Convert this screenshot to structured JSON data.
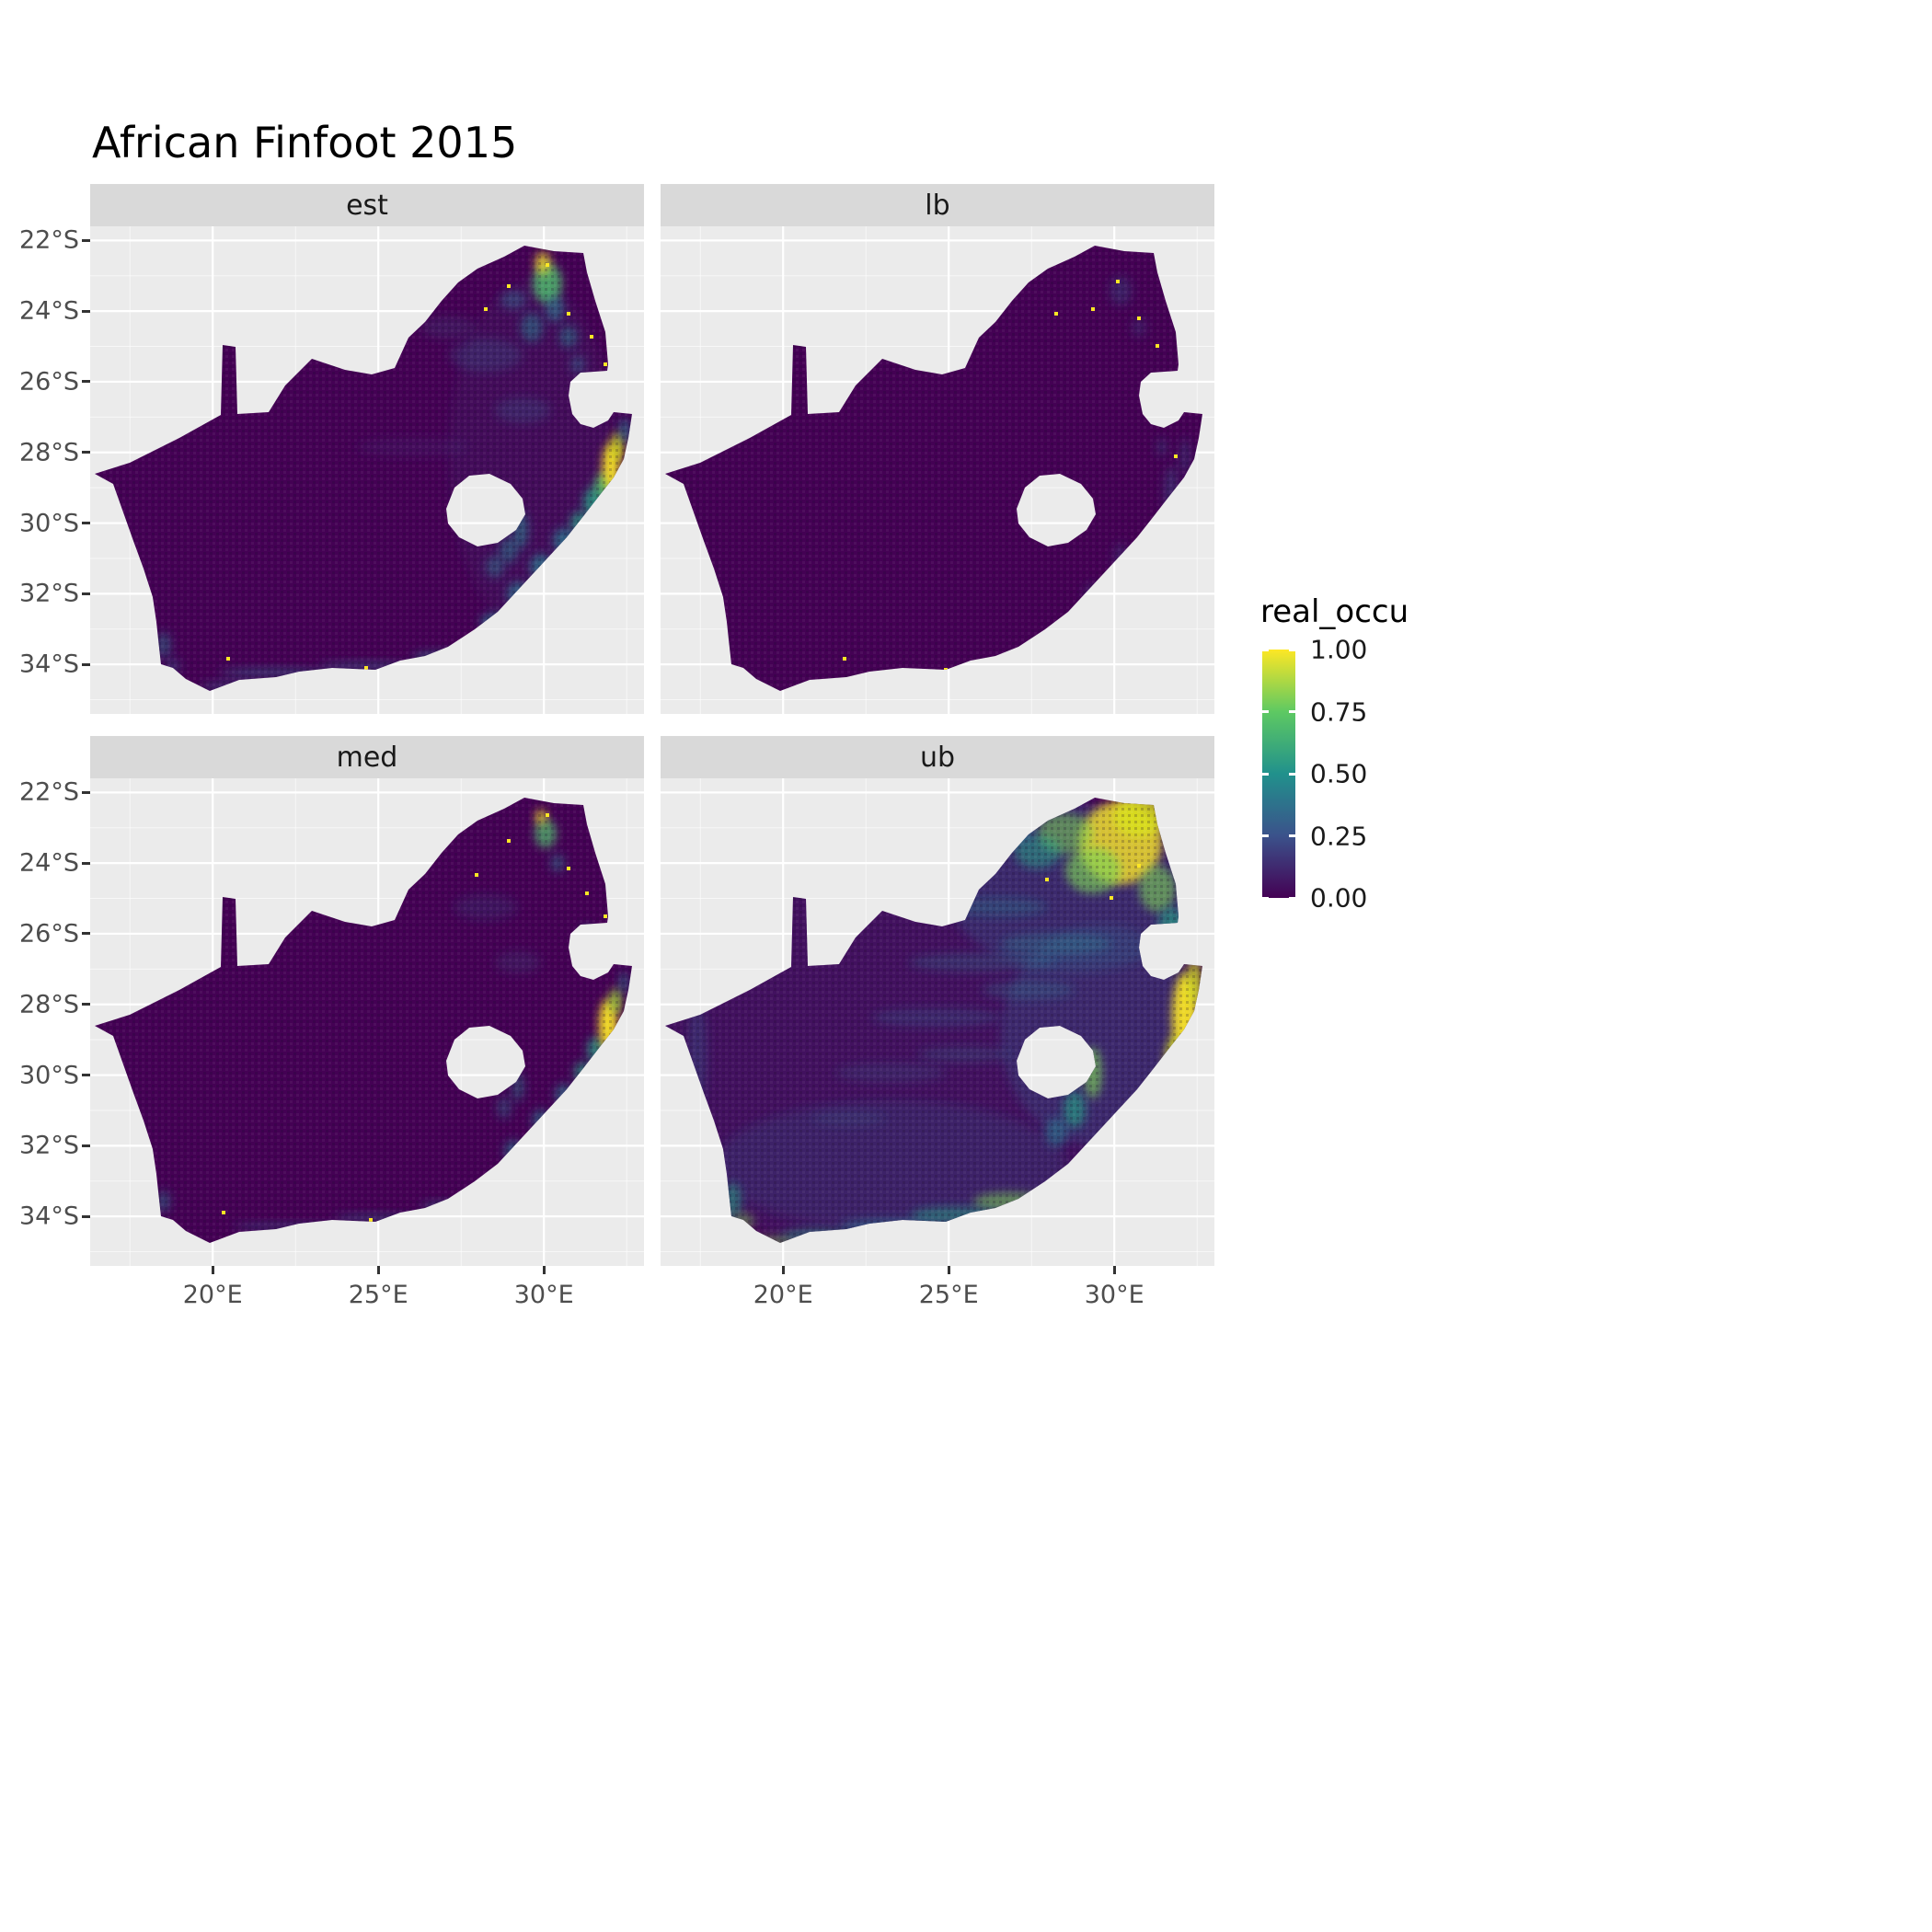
{
  "title": "African Finfoot 2015",
  "legend": {
    "title": "real_occu",
    "breaks": [
      "1.00",
      "0.75",
      "0.50",
      "0.25",
      "0.00"
    ],
    "palette": {
      "p0": "#440154",
      "p25": "#3b528b",
      "p50": "#21918c",
      "p75": "#5ec962",
      "p100": "#fde725"
    }
  },
  "chart_data": {
    "type": "heatmap",
    "subtype": "faceted raster occupancy map",
    "title": "African Finfoot 2015",
    "region": "South Africa",
    "x_axis": {
      "tick_labels": [
        "20°E",
        "25°E",
        "30°E"
      ],
      "tick_lons": [
        20,
        25,
        30
      ]
    },
    "y_axis": {
      "tick_labels": [
        "22°S",
        "24°S",
        "26°S",
        "28°S",
        "30°S",
        "32°S",
        "34°S"
      ],
      "tick_lats": [
        -22,
        -24,
        -26,
        -28,
        -30,
        -32,
        -34
      ]
    },
    "value_scale": {
      "name": "real_occu",
      "min": 0.0,
      "max": 1.0,
      "breaks": [
        1.0,
        0.75,
        0.5,
        0.25,
        0.0
      ],
      "palette": "viridis"
    },
    "facets": [
      {
        "label": "est",
        "description": "Estimated occupancy: near zero (dark purple) over most of the country; moderate to high along the eastern (KwaZulu-Natal) coastal belt with a bright peak near the east coast, elevated values in the north-east (Limpopo/Kruger), thin low-moderate band along the south coast; scattered occupied cells.",
        "blobs": [
          [
            480,
            250,
            90,
            190,
            "#31688e",
            0.1
          ],
          [
            440,
            430,
            16,
            10,
            "#2a788e",
            0.7
          ],
          [
            465,
            400,
            12,
            14,
            "#2a788e",
            0.7
          ],
          [
            490,
            370,
            12,
            14,
            "#2a788e",
            0.75
          ],
          [
            515,
            342,
            12,
            14,
            "#2a788e",
            0.75
          ],
          [
            532,
            322,
            10,
            12,
            "#22a884",
            0.7
          ],
          [
            548,
            300,
            12,
            16,
            "#22a884",
            0.75
          ],
          [
            558,
            282,
            10,
            14,
            "#4ec36b",
            0.8
          ],
          [
            566,
            262,
            9,
            26,
            "#fde725",
            0.95
          ],
          [
            573,
            240,
            7,
            16,
            "#d8e219",
            0.85
          ],
          [
            581,
            222,
            6,
            14,
            "#2a788e",
            0.7
          ],
          [
            497,
            62,
            16,
            22,
            "#4ec36b",
            0.8
          ],
          [
            492,
            40,
            8,
            12,
            "#fde725",
            0.8
          ],
          [
            505,
            90,
            10,
            14,
            "#2a788e",
            0.65
          ],
          [
            480,
            110,
            12,
            16,
            "#26828e",
            0.5
          ],
          [
            520,
            120,
            10,
            12,
            "#26828e",
            0.5
          ],
          [
            460,
            80,
            14,
            10,
            "#31688e",
            0.5
          ],
          [
            530,
            150,
            8,
            10,
            "#31688e",
            0.5
          ],
          [
            545,
            180,
            8,
            12,
            "#26828e",
            0.55
          ],
          [
            430,
            140,
            40,
            18,
            "#31688e",
            0.25
          ],
          [
            390,
            110,
            30,
            12,
            "#31688e",
            0.2
          ],
          [
            470,
            200,
            30,
            14,
            "#31688e",
            0.25
          ],
          [
            350,
            240,
            60,
            10,
            "#3b528b",
            0.15
          ],
          [
            468,
            330,
            8,
            20,
            "#26828e",
            0.6
          ],
          [
            455,
            352,
            10,
            14,
            "#26828e",
            0.5
          ],
          [
            440,
            370,
            10,
            12,
            "#2a788e",
            0.5
          ],
          [
            200,
            485,
            60,
            5,
            "#31688e",
            0.5
          ],
          [
            300,
            478,
            50,
            5,
            "#31688e",
            0.45
          ],
          [
            380,
            468,
            30,
            6,
            "#2a788e",
            0.5
          ],
          [
            150,
            500,
            30,
            5,
            "#31688e",
            0.4
          ],
          [
            80,
            455,
            8,
            14,
            "#2a788e",
            0.5
          ],
          [
            90,
            478,
            8,
            8,
            "#31688e",
            0.4
          ]
        ],
        "specks": [
          [
            150,
            470
          ],
          [
            300,
            480
          ],
          [
            497,
            42
          ],
          [
            545,
            120
          ],
          [
            520,
            95
          ],
          [
            560,
            150
          ],
          [
            430,
            90
          ],
          [
            455,
            65
          ],
          [
            350,
            100
          ]
        ]
      },
      {
        "label": "lb",
        "description": "Lower bound: occupancy near zero everywhere (uniform dark purple) with only a few isolated occupied cells in the north-east and along the coasts.",
        "blobs": [
          [
            555,
            290,
            8,
            30,
            "#31688e",
            0.35
          ],
          [
            570,
            250,
            6,
            20,
            "#31688e",
            0.3
          ],
          [
            500,
            360,
            8,
            16,
            "#3b528b",
            0.3
          ],
          [
            470,
            400,
            10,
            12,
            "#3b528b",
            0.3
          ],
          [
            500,
            70,
            12,
            16,
            "#31688e",
            0.3
          ],
          [
            520,
            110,
            8,
            10,
            "#3b528b",
            0.3
          ],
          [
            545,
            240,
            6,
            10,
            "#31688e",
            0.3
          ]
        ],
        "specks": [
          [
            497,
            60
          ],
          [
            520,
            100
          ],
          [
            540,
            130
          ],
          [
            470,
            90
          ],
          [
            560,
            250
          ],
          [
            200,
            470
          ],
          [
            310,
            482
          ],
          [
            552,
            200
          ],
          [
            430,
            95
          ]
        ]
      },
      {
        "label": "med",
        "description": "Median occupancy: similar to the estimate; mostly dark purple with a strong bright hotspot on the KwaZulu-Natal coast, teal coastal belt, moderate values in the north-east and a faint southern coastal band.",
        "blobs": [
          [
            460,
            405,
            10,
            12,
            "#2a788e",
            0.6
          ],
          [
            490,
            372,
            10,
            12,
            "#2a788e",
            0.6
          ],
          [
            515,
            344,
            10,
            12,
            "#2a788e",
            0.65
          ],
          [
            535,
            320,
            9,
            12,
            "#22a884",
            0.65
          ],
          [
            550,
            295,
            10,
            14,
            "#22a884",
            0.7
          ],
          [
            563,
            268,
            10,
            28,
            "#fde725",
            0.95
          ],
          [
            571,
            242,
            7,
            14,
            "#a0da39",
            0.8
          ],
          [
            580,
            222,
            5,
            12,
            "#2a788e",
            0.6
          ],
          [
            495,
            60,
            12,
            16,
            "#4ec36b",
            0.7
          ],
          [
            490,
            42,
            6,
            8,
            "#fde725",
            0.8
          ],
          [
            508,
            92,
            8,
            10,
            "#2a788e",
            0.5
          ],
          [
            540,
            170,
            7,
            10,
            "#26828e",
            0.45
          ],
          [
            430,
            140,
            35,
            14,
            "#31688e",
            0.18
          ],
          [
            465,
            200,
            25,
            12,
            "#31688e",
            0.2
          ],
          [
            465,
            335,
            7,
            16,
            "#26828e",
            0.45
          ],
          [
            450,
            358,
            8,
            12,
            "#2a788e",
            0.4
          ],
          [
            210,
            487,
            55,
            4,
            "#31688e",
            0.4
          ],
          [
            310,
            478,
            45,
            5,
            "#31688e",
            0.4
          ],
          [
            385,
            465,
            25,
            5,
            "#2a788e",
            0.45
          ],
          [
            80,
            460,
            7,
            12,
            "#2a788e",
            0.5
          ]
        ],
        "specks": [
          [
            145,
            472
          ],
          [
            305,
            480
          ],
          [
            497,
            40
          ],
          [
            520,
            98
          ],
          [
            455,
            68
          ],
          [
            560,
            150
          ],
          [
            420,
            105
          ],
          [
            540,
            125
          ]
        ]
      },
      {
        "label": "ub",
        "description": "Upper bound: widespread moderate occupancy; large yellow-green region across the north-east, bright yellow band along the entire east coast, green band along the south coast and Drakensberg rim, teal veins through the interior.",
        "blobs": [
          [
            300,
            265,
            320,
            280,
            "#3b528b",
            0.2
          ],
          [
            450,
            120,
            140,
            90,
            "#31688e",
            0.3
          ],
          [
            480,
            280,
            110,
            120,
            "#31688e",
            0.28
          ],
          [
            250,
            420,
            190,
            70,
            "#31688e",
            0.18
          ],
          [
            500,
            70,
            45,
            45,
            "#fde725",
            0.8
          ],
          [
            520,
            42,
            28,
            22,
            "#d8e219",
            0.8
          ],
          [
            470,
            100,
            30,
            25,
            "#7ad151",
            0.65
          ],
          [
            440,
            60,
            30,
            22,
            "#7ad151",
            0.55
          ],
          [
            410,
            80,
            25,
            18,
            "#22a884",
            0.5
          ],
          [
            380,
            60,
            25,
            14,
            "#2a788e",
            0.5
          ],
          [
            540,
            120,
            20,
            25,
            "#7ad151",
            0.6
          ],
          [
            555,
            160,
            14,
            20,
            "#22a884",
            0.6
          ],
          [
            570,
            260,
            14,
            48,
            "#fde725",
            0.92
          ],
          [
            560,
            310,
            12,
            30,
            "#d8e219",
            0.8
          ],
          [
            545,
            345,
            12,
            24,
            "#7ad151",
            0.7
          ],
          [
            520,
            380,
            14,
            24,
            "#22a884",
            0.7
          ],
          [
            490,
            410,
            14,
            20,
            "#7ad151",
            0.6
          ],
          [
            460,
            435,
            16,
            14,
            "#22a884",
            0.6
          ],
          [
            580,
            222,
            8,
            24,
            "#d8e219",
            0.8
          ],
          [
            470,
            320,
            10,
            28,
            "#7ad151",
            0.65
          ],
          [
            450,
            360,
            12,
            20,
            "#22a884",
            0.6
          ],
          [
            430,
            385,
            12,
            16,
            "#2a788e",
            0.6
          ],
          [
            380,
            460,
            40,
            10,
            "#7ad151",
            0.55
          ],
          [
            320,
            475,
            48,
            9,
            "#22a884",
            0.5
          ],
          [
            250,
            487,
            55,
            8,
            "#2a788e",
            0.55
          ],
          [
            170,
            497,
            38,
            8,
            "#22a884",
            0.45
          ],
          [
            120,
            505,
            24,
            8,
            "#7ad151",
            0.45
          ],
          [
            78,
            460,
            10,
            20,
            "#22a884",
            0.55
          ],
          [
            90,
            482,
            12,
            10,
            "#7ad151",
            0.45
          ],
          [
            40,
            300,
            10,
            60,
            "#31688e",
            0.3
          ],
          [
            350,
            200,
            80,
            10,
            "#2a788e",
            0.3
          ],
          [
            300,
            260,
            70,
            10,
            "#31688e",
            0.28
          ],
          [
            400,
            230,
            50,
            10,
            "#2a788e",
            0.3
          ],
          [
            250,
            320,
            60,
            10,
            "#31688e",
            0.22
          ],
          [
            330,
            300,
            50,
            8,
            "#2a788e",
            0.26
          ],
          [
            430,
            180,
            60,
            12,
            "#26828e",
            0.35
          ],
          [
            370,
            140,
            50,
            10,
            "#26828e",
            0.3
          ],
          [
            205,
            370,
            40,
            8,
            "#31688e",
            0.2
          ]
        ],
        "specks": [
          [
            520,
            95
          ],
          [
            490,
            130
          ],
          [
            545,
            200
          ],
          [
            420,
            110
          ],
          [
            360,
            90
          ],
          [
            560,
            180
          ]
        ]
      }
    ]
  }
}
